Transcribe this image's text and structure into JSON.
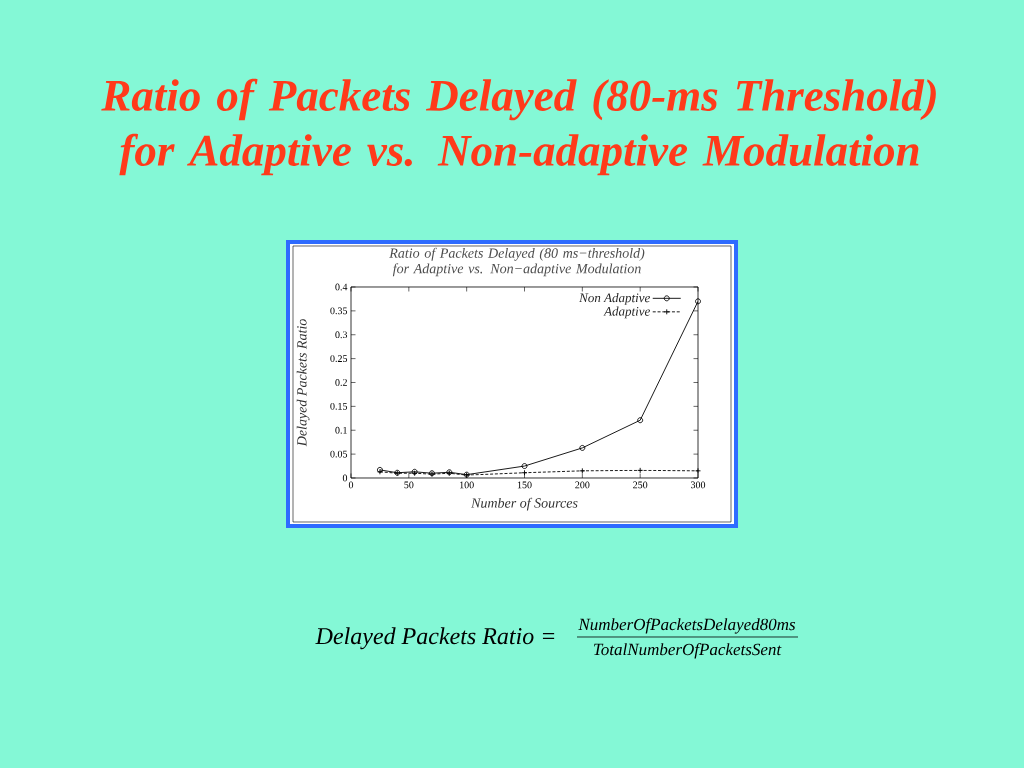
{
  "chart_data": {
    "type": "line",
    "title": "Ratio of Packets Delayed (80-ms Threshold) for Adaptive vs. Non-adaptive Modulation",
    "subtitle": "Ratio of Packets Delayed (80 ms−threshold) for Adaptive vs. Non−adaptive Modulation",
    "xlabel": "Number of Sources",
    "ylabel": "Delayed Packets Ratio",
    "x": [
      25,
      40,
      55,
      70,
      85,
      100,
      150,
      200,
      250,
      300
    ],
    "series": [
      {
        "name": "Non Adaptive",
        "color": "#000000",
        "marker": "circle",
        "line_style": "solid",
        "values": [
          0.017,
          0.011,
          0.013,
          0.01,
          0.012,
          0.007,
          0.025,
          0.063,
          0.121,
          0.37
        ]
      },
      {
        "name": "Adaptive",
        "color": "#000000",
        "marker": "cross",
        "line_style": "dashed",
        "values": [
          0.013,
          0.01,
          0.01,
          0.008,
          0.01,
          0.006,
          0.011,
          0.015,
          0.016,
          0.015
        ]
      }
    ],
    "xlim": [
      0,
      300
    ],
    "ylim": [
      0,
      0.4
    ],
    "xticks": [
      0,
      50,
      100,
      150,
      200,
      250,
      300
    ],
    "yticks": [
      0,
      0.05,
      0.1,
      0.15,
      0.2,
      0.25,
      0.3,
      0.35,
      0.4
    ],
    "legend": "top right",
    "annotations": [
      "Delayed Packets Ratio =",
      "NumberOfPacketsDelayed80ms",
      "TotalNumberOfPacketsSent"
    ]
  }
}
